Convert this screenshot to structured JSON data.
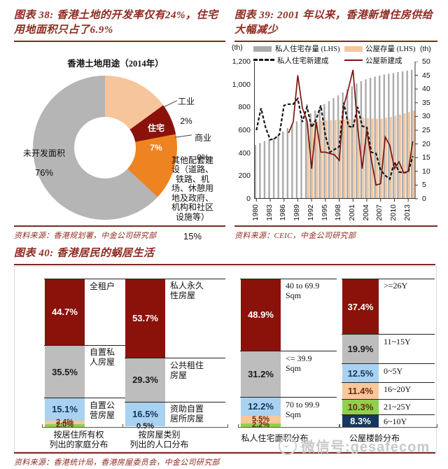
{
  "watermark": {
    "text": "微信号:gesafecom"
  },
  "chart_data": [
    {
      "id": "figure-38",
      "type": "pie",
      "donut": true,
      "title": "图表 38: 香港土地的开发率仅有24%，住宅用地面积只占了6.9%",
      "subtitle": "香港土地用途（2014年）",
      "source": "资料来源：香港规划署，中金公司研究部",
      "start_angle_deg": 46.7,
      "slices": [
        {
          "label": "工业",
          "value": 2,
          "pct_text": "2%",
          "color": "#f6c59b"
        },
        {
          "label": "住宅",
          "value": 7,
          "pct_text": "7%",
          "color": "#8a120b"
        },
        {
          "label": "商业",
          "value": 0,
          "pct_text": "0%",
          "color": "#ffffff"
        },
        {
          "label": "其他配套建\n设（道路、\n铁路、机\n场、休憩用\n地及政府、\n机构和社区\n设施等）",
          "value": 15,
          "pct_text": "15%",
          "color": "#ee8322"
        },
        {
          "label": "未开发面积",
          "value": 76,
          "pct_text": "76%",
          "color": "#b5b5b5"
        }
      ]
    },
    {
      "id": "figure-39",
      "type": "bar",
      "title": "图表 39: 2001 年以来，香港新增住房供给大幅减少",
      "source": "资料来源：CEIC，中金公司研究部",
      "left_axis": {
        "unit": "(th)",
        "min": 0,
        "max": 1200,
        "tick_step": 200,
        "tick_labels": [
          "0",
          "200",
          "400",
          "600",
          "800",
          "1,000",
          "1,200"
        ]
      },
      "right_axis": {
        "unit": "(th)",
        "min": 0,
        "max": 50,
        "tick_step": 5
      },
      "years": [
        1980,
        1981,
        1982,
        1983,
        1984,
        1985,
        1986,
        1987,
        1988,
        1989,
        1990,
        1991,
        1992,
        1993,
        1994,
        1995,
        1996,
        1997,
        1998,
        1999,
        2000,
        2001,
        2002,
        2003,
        2004,
        2005,
        2006,
        2007,
        2008,
        2009,
        2010,
        2011,
        2012,
        2013,
        2014
      ],
      "x_tick_every": 3,
      "series": [
        {
          "name": "私人住宅存量 (LHS)",
          "type": "bar",
          "axis": "left",
          "color": "#ababab",
          "values": [
            470,
            488,
            505,
            520,
            535,
            560,
            588,
            618,
            648,
            678,
            700,
            722,
            748,
            772,
            800,
            828,
            855,
            880,
            905,
            930,
            958,
            985,
            1008,
            1028,
            1045,
            1058,
            1068,
            1078,
            1088,
            1094,
            1100,
            1108,
            1114,
            1121,
            1128
          ]
        },
        {
          "name": "公屋存量 (LHS)",
          "type": "bar",
          "axis": "left",
          "color": "#f2c6a0",
          "values": [
            null,
            null,
            null,
            null,
            null,
            null,
            null,
            null,
            null,
            null,
            null,
            660,
            672,
            678,
            682,
            686,
            688,
            690,
            692,
            694,
            697,
            700,
            706,
            712,
            706,
            702,
            700,
            700,
            708,
            716,
            726,
            736,
            748,
            758,
            770
          ]
        },
        {
          "name": "私人住宅新建成",
          "type": "line",
          "dash": true,
          "axis": "right",
          "color": "#151515",
          "values": [
            25,
            33,
            26,
            21.5,
            22,
            23.5,
            34,
            34.5,
            34.5,
            36.5,
            28,
            33.5,
            26,
            29,
            34,
            23,
            17,
            18,
            19,
            35,
            26.5,
            26,
            33.5,
            26.5,
            26,
            17,
            16.5,
            10.5,
            8.5,
            7.2,
            13.5,
            9.8,
            9.5,
            9.8,
            15.5
          ]
        },
        {
          "name": "公屋新建成",
          "type": "line",
          "dash": false,
          "axis": "right",
          "color": "#7b150c",
          "values": [
            null,
            null,
            null,
            null,
            null,
            null,
            null,
            24,
            28,
            45,
            33,
            28.5,
            11,
            28,
            17,
            17,
            16.5,
            16,
            14,
            34,
            40,
            47,
            26,
            11,
            25,
            14,
            5,
            5.5,
            22.5,
            19.5,
            11,
            13.5,
            9.5,
            10,
            21
          ]
        }
      ]
    },
    {
      "id": "figure-40",
      "type": "bar",
      "stacked": true,
      "title": "图表 40: 香港居民的蜗居生活",
      "source": "资料来源：香港统计局，香港房屋委员会，中金公司研究部",
      "groups": [
        {
          "caption": "按居住所有权\n列出的家庭分布",
          "segments": [
            {
              "pct": 44.7,
              "pct_label": "44.7%",
              "color": "darkred",
              "side_label": "全租户"
            },
            {
              "pct": 35.5,
              "pct_label": "35.5%",
              "color": "gray",
              "side_label": "自置私\n人房屋"
            },
            {
              "pct": 15.1,
              "pct_label": "15.1%",
              "color": "blue",
              "side_label": "自置公\n营房屋"
            },
            {
              "pct": 2.4,
              "pct_label": "2.4%",
              "color": "peach"
            },
            {
              "pct": 2.0,
              "pct_label": "2.0%",
              "color": "green"
            }
          ]
        },
        {
          "caption": "按房屋类别\n列出的人口分布",
          "segments": [
            {
              "pct": 53.7,
              "pct_label": "53.7%",
              "color": "darkred",
              "side_label": "私人永久\n性房屋"
            },
            {
              "pct": 29.3,
              "pct_label": "29.3%",
              "color": "gray",
              "side_label": "公共租住\n房屋"
            },
            {
              "pct": 16.5,
              "pct_label": "16.5%",
              "color": "blue",
              "side_label": "资助自置\n居所房屋"
            },
            {
              "pct": 0.5,
              "pct_label": "0.5%",
              "color": "white"
            }
          ]
        },
        {
          "caption": "私人住宅面积分布",
          "segments": [
            {
              "pct": 48.9,
              "pct_label": "48.9%",
              "color": "darkred",
              "side_label": "40 to 69.9\nSqm"
            },
            {
              "pct": 31.2,
              "pct_label": "31.2%",
              "color": "gray",
              "side_label": "<= 39.9\nSqm"
            },
            {
              "pct": 12.2,
              "pct_label": "12.2%",
              "color": "blue",
              "side_label": "70 to 99.9\nSqm"
            },
            {
              "pct": 5.5,
              "pct_label": "5.5%",
              "color": "peach"
            },
            {
              "pct": 2.2,
              "pct_label": "2.2%",
              "color": "green"
            }
          ]
        },
        {
          "caption": "公屋楼龄分布",
          "segments": [
            {
              "pct": 37.4,
              "pct_label": "37.4%",
              "color": "darkred",
              "side_label": ">=26Y"
            },
            {
              "pct": 19.9,
              "pct_label": "19.9%",
              "color": "gray",
              "side_label": "11~15Y"
            },
            {
              "pct": 12.5,
              "pct_label": "12.5%",
              "color": "blue",
              "side_label": "0~5Y"
            },
            {
              "pct": 11.4,
              "pct_label": "11.4%",
              "color": "peach",
              "side_label": "16~20Y"
            },
            {
              "pct": 10.3,
              "pct_label": "10.3%",
              "color": "green",
              "side_label": "21~25Y"
            },
            {
              "pct": 8.3,
              "pct_label": "8.3%",
              "color": "navy",
              "side_label": "6~10Y"
            }
          ]
        }
      ]
    }
  ],
  "palette": {
    "darkred": "#8a120b",
    "gray": "#bdbdbd",
    "blue": "#a8d2f0",
    "peach": "#f8c79b",
    "green": "#8fd14f",
    "navy": "#17375e",
    "white": "#ffffff",
    "maroon_rule": "#7f2a23"
  }
}
